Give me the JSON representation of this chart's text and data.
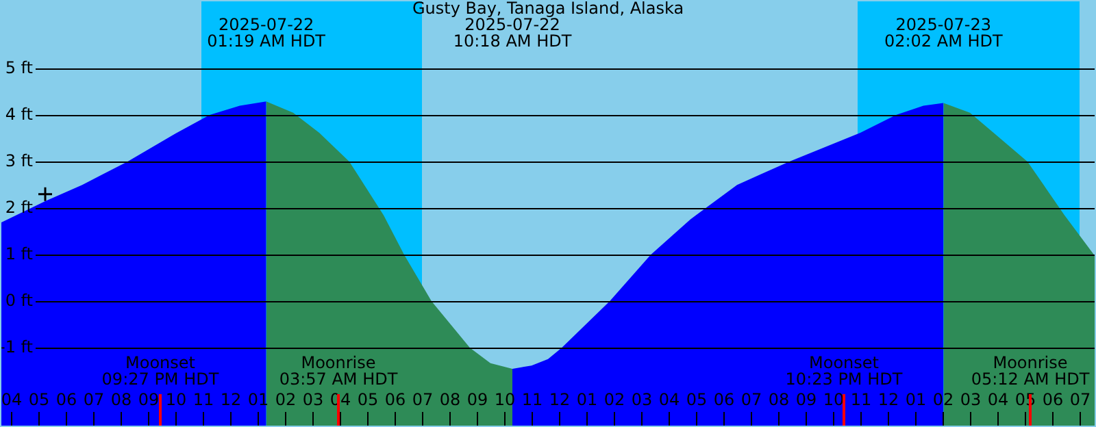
{
  "chart_data": {
    "type": "area",
    "title": "Gusty Bay, Tanaga Island, Alaska",
    "xlim": [
      "2025-07-21T15:36",
      "2025-07-23T07:36"
    ],
    "ylim": [
      -2.7,
      6.47
    ],
    "xticks": [
      {
        "value": "2025-07-21T16:00",
        "label": "04"
      },
      {
        "value": "2025-07-21T17:00",
        "label": "05"
      },
      {
        "value": "2025-07-21T18:00",
        "label": "06"
      },
      {
        "value": "2025-07-21T19:00",
        "label": "07"
      },
      {
        "value": "2025-07-21T20:00",
        "label": "08"
      },
      {
        "value": "2025-07-21T21:00",
        "label": "09"
      },
      {
        "value": "2025-07-21T22:00",
        "label": "10"
      },
      {
        "value": "2025-07-21T23:00",
        "label": "11"
      },
      {
        "value": "2025-07-22T00:00",
        "label": "12"
      },
      {
        "value": "2025-07-22T01:00",
        "label": "01"
      },
      {
        "value": "2025-07-22T02:00",
        "label": "02"
      },
      {
        "value": "2025-07-22T03:00",
        "label": "03"
      },
      {
        "value": "2025-07-22T04:00",
        "label": "04"
      },
      {
        "value": "2025-07-22T05:00",
        "label": "05"
      },
      {
        "value": "2025-07-22T06:00",
        "label": "06"
      },
      {
        "value": "2025-07-22T07:00",
        "label": "07"
      },
      {
        "value": "2025-07-22T08:00",
        "label": "08"
      },
      {
        "value": "2025-07-22T09:00",
        "label": "09"
      },
      {
        "value": "2025-07-22T10:00",
        "label": "10"
      },
      {
        "value": "2025-07-22T11:00",
        "label": "11"
      },
      {
        "value": "2025-07-22T12:00",
        "label": "12"
      },
      {
        "value": "2025-07-22T13:00",
        "label": "01"
      },
      {
        "value": "2025-07-22T14:00",
        "label": "02"
      },
      {
        "value": "2025-07-22T15:00",
        "label": "03"
      },
      {
        "value": "2025-07-22T16:00",
        "label": "04"
      },
      {
        "value": "2025-07-22T17:00",
        "label": "05"
      },
      {
        "value": "2025-07-22T18:00",
        "label": "06"
      },
      {
        "value": "2025-07-22T19:00",
        "label": "07"
      },
      {
        "value": "2025-07-22T20:00",
        "label": "08"
      },
      {
        "value": "2025-07-22T21:00",
        "label": "09"
      },
      {
        "value": "2025-07-22T22:00",
        "label": "10"
      },
      {
        "value": "2025-07-22T23:00",
        "label": "11"
      },
      {
        "value": "2025-07-23T00:00",
        "label": "12"
      },
      {
        "value": "2025-07-23T01:00",
        "label": "01"
      },
      {
        "value": "2025-07-23T02:00",
        "label": "02"
      },
      {
        "value": "2025-07-23T03:00",
        "label": "03"
      },
      {
        "value": "2025-07-23T04:00",
        "label": "04"
      },
      {
        "value": "2025-07-23T05:00",
        "label": "05"
      },
      {
        "value": "2025-07-23T06:00",
        "label": "06"
      },
      {
        "value": "2025-07-23T07:00",
        "label": "07"
      }
    ],
    "yticks": [
      {
        "value": -1,
        "label": "-1 ft"
      },
      {
        "value": 0,
        "label": "0 ft"
      },
      {
        "value": 1,
        "label": "1 ft"
      },
      {
        "value": 2,
        "label": "2 ft"
      },
      {
        "value": 3,
        "label": "3 ft"
      },
      {
        "value": 4,
        "label": "4 ft"
      },
      {
        "value": 5,
        "label": "5 ft"
      }
    ],
    "grid": "y",
    "legend": false,
    "series": [
      {
        "color": "#0000ff",
        "x": [
          "2025-07-21T15:36",
          "2025-07-21T17:15",
          "2025-07-21T18:36",
          "2025-07-21T20:15",
          "2025-07-21T22:00",
          "2025-07-21T23:15",
          "2025-07-22T00:21",
          "2025-07-22T01:19"
        ],
        "values": [
          1.68,
          2.15,
          2.5,
          3.0,
          3.6,
          4.0,
          4.2,
          4.29
        ]
      },
      {
        "color": "#2e8b57",
        "x": [
          "2025-07-22T01:19",
          "2025-07-22T02:18",
          "2025-07-22T03:15",
          "2025-07-22T04:21",
          "2025-07-22T05:36",
          "2025-07-22T06:21",
          "2025-07-22T07:21",
          "2025-07-22T08:45",
          "2025-07-22T09:30",
          "2025-07-22T10:18"
        ],
        "values": [
          4.29,
          4.05,
          3.62,
          3.0,
          1.85,
          1.0,
          0,
          -1.0,
          -1.33,
          -1.45
        ]
      },
      {
        "color": "#0000ff",
        "x": [
          "2025-07-22T10:18",
          "2025-07-22T11:00",
          "2025-07-22T11:36",
          "2025-07-22T12:06",
          "2025-07-22T13:51",
          "2025-07-22T15:21",
          "2025-07-22T16:48",
          "2025-07-22T18:30",
          "2025-07-22T20:24",
          "2025-07-22T23:00",
          "2025-07-23T00:18",
          "2025-07-23T01:18",
          "2025-07-23T02:02"
        ],
        "values": [
          -1.45,
          -1.38,
          -1.24,
          -1.0,
          0,
          1.0,
          1.76,
          2.5,
          3.0,
          3.62,
          4.0,
          4.2,
          4.26
        ]
      },
      {
        "color": "#2e8b57",
        "x": [
          "2025-07-23T02:02",
          "2025-07-23T03:00",
          "2025-07-23T04:00",
          "2025-07-23T05:06",
          "2025-07-23T06:27",
          "2025-07-23T07:36"
        ],
        "values": [
          4.26,
          4.05,
          3.55,
          3.0,
          1.85,
          0.94
        ]
      },
      {
        "type": "scatter",
        "color": "#000000",
        "marker": "cross",
        "x": [
          "2025-07-21T17:15"
        ],
        "values": [
          2.3
        ]
      }
    ],
    "bands": [
      {
        "axis": "x",
        "from": "2025-07-21T22:57",
        "to": "2025-07-22T07:00",
        "color": "#00bfff"
      },
      {
        "axis": "x",
        "from": "2025-07-22T22:54",
        "to": "2025-07-23T07:00",
        "color": "#00bfff"
      }
    ],
    "ref_lines": [
      {
        "axis": "x",
        "value": "2025-07-21T21:27",
        "label": "Moonset\n09:27 PM HDT",
        "color": "#ff0000"
      },
      {
        "axis": "x",
        "value": "2025-07-22T03:57",
        "label": "Moonrise\n03:57 AM HDT",
        "color": "#ff0000"
      },
      {
        "axis": "x",
        "value": "2025-07-22T22:23",
        "label": "Moonset\n10:23 PM HDT",
        "color": "#ff0000"
      },
      {
        "axis": "x",
        "value": "2025-07-23T05:12",
        "label": "Moonrise\n05:12 AM HDT",
        "color": "#ff0000"
      }
    ],
    "annotations": [
      "2025-07-22\n01:19 AM HDT",
      "2025-07-22\n10:18 AM HDT",
      "2025-07-23\n02:02 AM HDT"
    ]
  }
}
